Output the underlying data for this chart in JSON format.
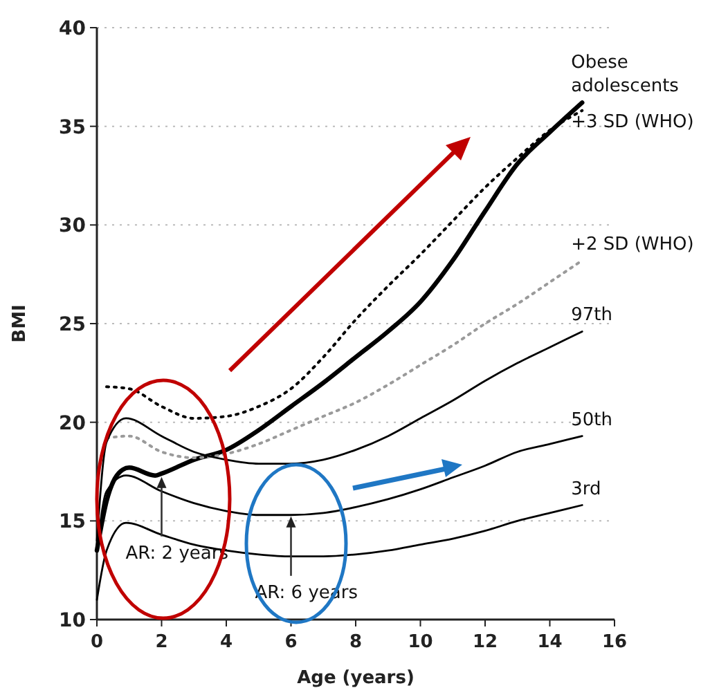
{
  "chart_data": {
    "type": "line",
    "xlabel": "Age (years)",
    "ylabel": "BMI",
    "xlim": [
      0,
      16
    ],
    "xticks": [
      0,
      2,
      4,
      6,
      8,
      10,
      12,
      14,
      16
    ],
    "ylim": [
      10,
      40
    ],
    "yticks": [
      10,
      15,
      20,
      25,
      30,
      35,
      40
    ],
    "grid": "y",
    "series": [
      {
        "name": "Obese adolescents",
        "color": "#000000",
        "line_style": "solid",
        "x": [
          0,
          0.3,
          0.8,
          1,
          1.8,
          2,
          3,
          4,
          5,
          6,
          7,
          8,
          9,
          10,
          11,
          12,
          13,
          14,
          15
        ],
        "values": [
          13.5,
          16,
          17.6,
          17.7,
          17.3,
          17.4,
          18.1,
          18.6,
          19.6,
          20.8,
          22,
          23.3,
          24.6,
          26.1,
          28.2,
          30.7,
          33.1,
          34.7,
          36.2
        ]
      },
      {
        "name": "+3 SD (WHO)",
        "color": "#000000",
        "line_style": "dotted",
        "x": [
          0.3,
          1,
          2,
          3,
          4,
          5,
          6,
          7,
          8,
          9,
          10,
          11,
          12,
          13,
          14,
          15
        ],
        "values": [
          21.8,
          21.7,
          20.8,
          20.2,
          20.3,
          20.8,
          21.7,
          23.3,
          25.2,
          26.9,
          28.5,
          30.2,
          31.9,
          33.4,
          34.8,
          35.8
        ]
      },
      {
        "name": "+2 SD (WHO)",
        "color": "#9a9a9a",
        "line_style": "dotted",
        "x": [
          0.3,
          1,
          2,
          3,
          4,
          5,
          6,
          7,
          8,
          9,
          10,
          11,
          12,
          13,
          14,
          15
        ],
        "values": [
          19.2,
          19.3,
          18.5,
          18.2,
          18.4,
          18.9,
          19.6,
          20.3,
          21,
          21.9,
          22.9,
          23.9,
          25,
          26,
          27.1,
          28.2
        ]
      },
      {
        "name": "97th",
        "color": "#000000",
        "line_style": "solid",
        "x": [
          0,
          0.3,
          0.9,
          2,
          3,
          4,
          5,
          6,
          7,
          8,
          9,
          10,
          11,
          12,
          13,
          14,
          15
        ],
        "values": [
          14,
          19,
          20.2,
          19.3,
          18.5,
          18.1,
          17.9,
          17.9,
          18.1,
          18.6,
          19.3,
          20.2,
          21.1,
          22.1,
          23,
          23.8,
          24.6
        ]
      },
      {
        "name": "50th",
        "color": "#000000",
        "line_style": "solid",
        "x": [
          0,
          0.3,
          0.9,
          2,
          3,
          4,
          5,
          6,
          7,
          8,
          9,
          10,
          11,
          12,
          13,
          14,
          15
        ],
        "values": [
          13.5,
          16.5,
          17.3,
          16.5,
          15.9,
          15.5,
          15.3,
          15.3,
          15.4,
          15.7,
          16.1,
          16.6,
          17.2,
          17.8,
          18.5,
          18.9,
          19.3
        ]
      },
      {
        "name": "3rd",
        "color": "#000000",
        "line_style": "solid",
        "x": [
          0,
          0.3,
          0.9,
          2,
          3,
          4,
          5,
          6,
          7,
          8,
          9,
          10,
          11,
          12,
          13,
          14,
          15
        ],
        "values": [
          11,
          13.5,
          14.9,
          14.3,
          13.8,
          13.5,
          13.3,
          13.2,
          13.2,
          13.3,
          13.5,
          13.8,
          14.1,
          14.5,
          15,
          15.4,
          15.8
        ]
      }
    ],
    "annotations": [
      {
        "text": "AR: 2 years",
        "x": 2,
        "y": 17.3
      },
      {
        "text": "AR: 6 years",
        "x": 6,
        "y": 15.3
      }
    ]
  }
}
